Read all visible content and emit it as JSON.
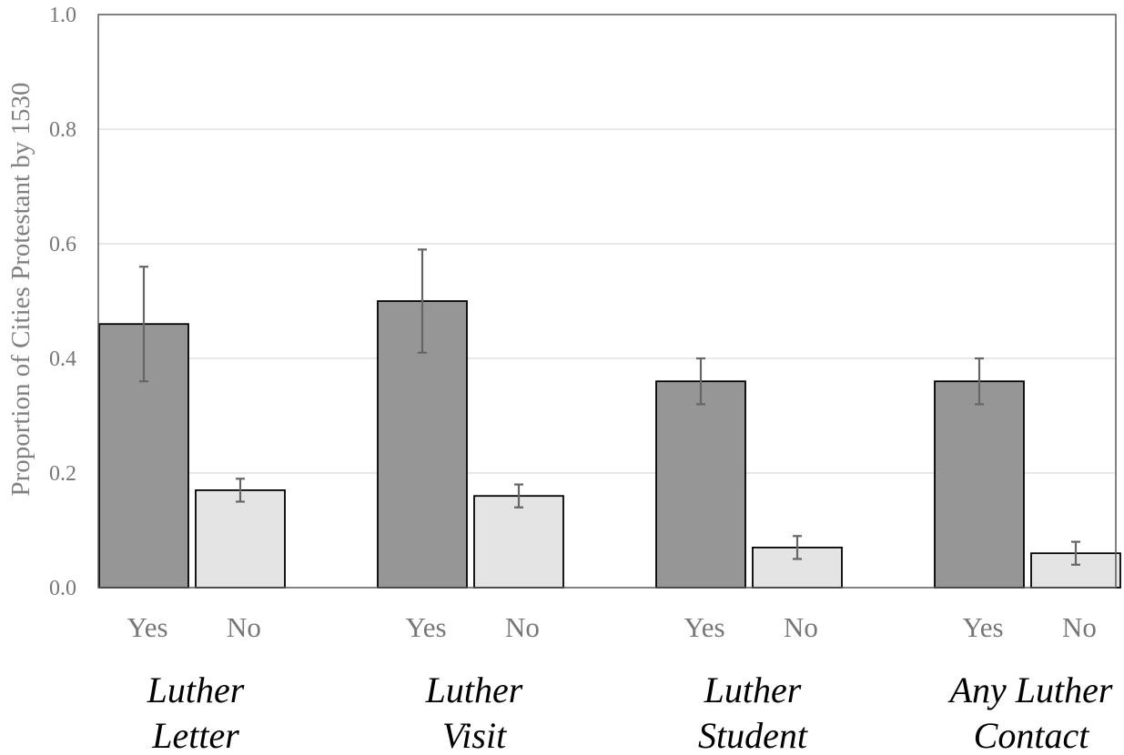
{
  "chart_data": {
    "type": "bar",
    "title": "",
    "ylabel": "Proportion of Cities Protestant by 1530",
    "xlabel": "",
    "ylim": [
      0,
      1.0
    ],
    "yticks": [
      "0.0",
      "0.2",
      "0.4",
      "0.6",
      "0.8",
      "1.0"
    ],
    "grid": true,
    "groups": [
      {
        "label_lines": [
          "Luther",
          "Letter"
        ],
        "bars": [
          {
            "category": "Yes",
            "value": 0.46,
            "err_low": 0.36,
            "err_high": 0.56
          },
          {
            "category": "No",
            "value": 0.17,
            "err_low": 0.15,
            "err_high": 0.19
          }
        ]
      },
      {
        "label_lines": [
          "Luther",
          "Visit"
        ],
        "bars": [
          {
            "category": "Yes",
            "value": 0.5,
            "err_low": 0.41,
            "err_high": 0.59
          },
          {
            "category": "No",
            "value": 0.16,
            "err_low": 0.14,
            "err_high": 0.18
          }
        ]
      },
      {
        "label_lines": [
          "Luther",
          "Student"
        ],
        "bars": [
          {
            "category": "Yes",
            "value": 0.36,
            "err_low": 0.32,
            "err_high": 0.4
          },
          {
            "category": "No",
            "value": 0.07,
            "err_low": 0.05,
            "err_high": 0.09
          }
        ]
      },
      {
        "label_lines": [
          "Any Luther",
          "Contact"
        ],
        "bars": [
          {
            "category": "Yes",
            "value": 0.36,
            "err_low": 0.32,
            "err_high": 0.4
          },
          {
            "category": "No",
            "value": 0.06,
            "err_low": 0.04,
            "err_high": 0.08
          }
        ]
      }
    ],
    "colors": {
      "Yes": "#969696",
      "No": "#e4e4e4",
      "grid": "#d9d9d9",
      "errorbar": "#666666"
    }
  }
}
